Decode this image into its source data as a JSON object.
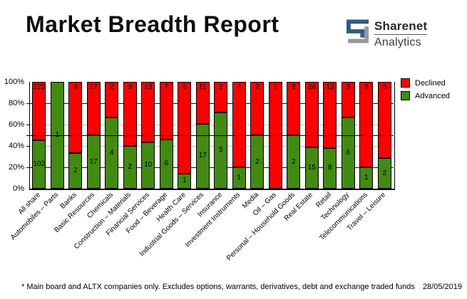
{
  "header": {
    "title": "Market Breadth Report",
    "logo": {
      "name": "Sharenet",
      "sub": "Analytics",
      "blue": "#2d5c87",
      "gray": "#97999b"
    }
  },
  "legend": [
    {
      "label": "Declined",
      "color": "#ff0000"
    },
    {
      "label": "Advanced",
      "color": "#428a12"
    }
  ],
  "chart_data": {
    "type": "bar",
    "stacked": true,
    "unit": "counts shown as percent of total per sector",
    "title": "Market Breadth Report",
    "categories": [
      "All share",
      "Automobiles – Parts",
      "Banks",
      "Basic Resources",
      "Chemicals",
      "Construction – Materials",
      "Financial Services",
      "Food – Beverage",
      "Health Care",
      "Industrial Goods – Services",
      "Insurance",
      "Investment Instruments",
      "Media",
      "Oil – Gas",
      "Personal – Household Goods",
      "Real Estate",
      "Retail",
      "Technology",
      "Telecommunications",
      "Travel – Leisure"
    ],
    "series": [
      {
        "name": "Declined",
        "color": "#ff0000",
        "values": [
          123,
          0,
          4,
          17,
          2,
          3,
          13,
          7,
          6,
          11,
          2,
          4,
          2,
          1,
          2,
          24,
          13,
          3,
          4,
          5
        ]
      },
      {
        "name": "Advanced",
        "color": "#428a12",
        "values": [
          102,
          1,
          2,
          17,
          4,
          2,
          10,
          6,
          1,
          17,
          5,
          1,
          2,
          0,
          2,
          15,
          8,
          6,
          1,
          2
        ]
      }
    ],
    "yticks": [
      "0%",
      "20%",
      "40%",
      "60%",
      "80%",
      "100%"
    ],
    "ylim": [
      0,
      100
    ],
    "gridlines": [
      {
        "value": 20,
        "color": "#000080"
      },
      {
        "value": 40,
        "color": "#c0c0c0"
      },
      {
        "value": 60,
        "color": "#c0c0c0"
      },
      {
        "value": 80,
        "color": "#000080"
      }
    ],
    "reference_line": {
      "value": 50,
      "color": "#000000"
    },
    "legend_position": "right"
  },
  "footer": {
    "note": "* Main board and ALTX companies only. Excludes options, warrants, derivatives, debt and exchange traded funds",
    "date": "28/05/2019"
  }
}
